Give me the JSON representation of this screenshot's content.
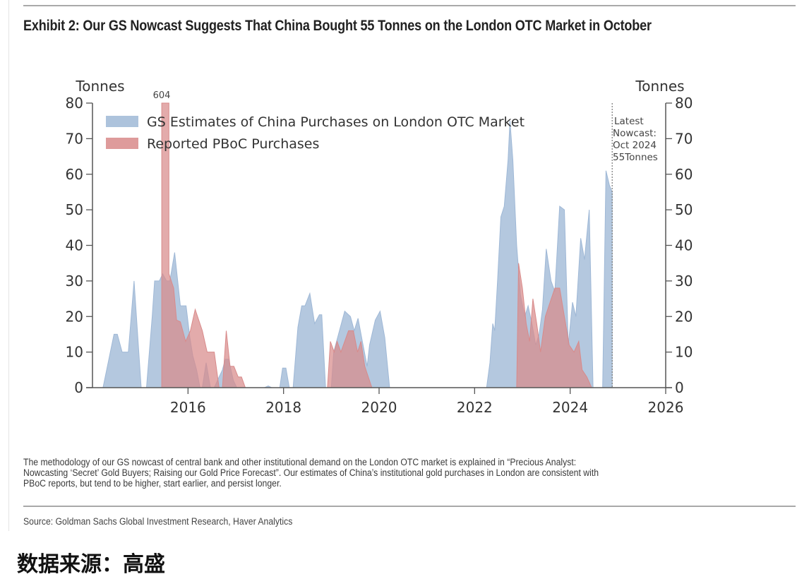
{
  "page": {
    "title": "Exhibit 2: Our GS Nowcast Suggests That China Bought 55 Tonnes on the London OTC Market in October",
    "note_lines": [
      "The methodology of our GS nowcast of central bank and other institutional demand on the London OTC market is explained in “Precious Analyst:",
      "Nowcasting ‘Secret’ Gold Buyers; Raising our Gold Price Forecast”. Our estimates of China’s institutional gold purchases in London are consistent with",
      "PBoC reports, but tend to be higher, start earlier, and persist longer."
    ],
    "source": "Source: Goldman Sachs Global Investment Research, Haver Analytics",
    "footer_cn": "数据来源：高盛"
  },
  "chart_data": {
    "type": "area",
    "title": "Exhibit 2: Our GS Nowcast Suggests That China Bought 55 Tonnes on the London OTC Market in October",
    "xlabel": "",
    "ylabel_left": "Tonnes",
    "ylabel_right": "Tonnes",
    "xlim": [
      2014.0,
      2026.0
    ],
    "ylim": [
      0,
      80
    ],
    "xticks": [
      "2016",
      "2018",
      "2020",
      "2022",
      "2024",
      "2026"
    ],
    "xtick_values": [
      2016,
      2018,
      2020,
      2022,
      2024,
      2026
    ],
    "yticks": [
      "0",
      "10",
      "20",
      "30",
      "40",
      "50",
      "60",
      "70",
      "80"
    ],
    "ytick_values": [
      0,
      10,
      20,
      30,
      40,
      50,
      60,
      70,
      80
    ],
    "grid": false,
    "legend_position": "top-left",
    "colors": {
      "gs": "#9fb8d6",
      "pboc": "#d88a8a",
      "axis": "#555555"
    },
    "series": [
      {
        "name": "GS Estimates of China Purchases on London OTC Market",
        "key": "gs",
        "points": [
          [
            2014.22,
            0
          ],
          [
            2014.45,
            15
          ],
          [
            2014.52,
            15
          ],
          [
            2014.62,
            10
          ],
          [
            2014.75,
            10
          ],
          [
            2014.87,
            30
          ],
          [
            2015.02,
            0
          ],
          [
            2015.13,
            0
          ],
          [
            2015.25,
            20
          ],
          [
            2015.3,
            30
          ],
          [
            2015.4,
            30
          ],
          [
            2015.47,
            32
          ],
          [
            2015.55,
            30
          ],
          [
            2015.62,
            30
          ],
          [
            2015.72,
            38
          ],
          [
            2015.84,
            23
          ],
          [
            2015.96,
            23
          ],
          [
            2016.04,
            14
          ],
          [
            2016.1,
            9
          ],
          [
            2016.18,
            5
          ],
          [
            2016.25,
            0
          ],
          [
            2016.3,
            0
          ],
          [
            2016.38,
            7
          ],
          [
            2016.47,
            0
          ],
          [
            2016.55,
            0
          ],
          [
            2016.65,
            3
          ],
          [
            2016.72,
            5
          ],
          [
            2016.78,
            8
          ],
          [
            2016.85,
            8
          ],
          [
            2016.95,
            2
          ],
          [
            2017.02,
            0
          ],
          [
            2017.6,
            0
          ],
          [
            2017.68,
            0.5
          ],
          [
            2017.75,
            0
          ],
          [
            2017.92,
            0
          ],
          [
            2017.98,
            5.5
          ],
          [
            2018.05,
            5.5
          ],
          [
            2018.12,
            0
          ],
          [
            2018.2,
            0
          ],
          [
            2018.3,
            17
          ],
          [
            2018.38,
            23
          ],
          [
            2018.45,
            23
          ],
          [
            2018.55,
            26.5
          ],
          [
            2018.65,
            18
          ],
          [
            2018.75,
            20.5
          ],
          [
            2018.8,
            20.5
          ],
          [
            2018.88,
            0
          ],
          [
            2019.0,
            0
          ],
          [
            2019.05,
            10
          ],
          [
            2019.15,
            15
          ],
          [
            2019.28,
            21.5
          ],
          [
            2019.4,
            20
          ],
          [
            2019.48,
            16
          ],
          [
            2019.56,
            19.5
          ],
          [
            2019.65,
            13
          ],
          [
            2019.75,
            6
          ],
          [
            2019.8,
            12
          ],
          [
            2019.92,
            19
          ],
          [
            2020.02,
            21.5
          ],
          [
            2020.12,
            14
          ],
          [
            2020.22,
            0
          ],
          [
            2022.25,
            0
          ],
          [
            2022.32,
            7
          ],
          [
            2022.38,
            18
          ],
          [
            2022.42,
            16
          ],
          [
            2022.48,
            30
          ],
          [
            2022.55,
            48
          ],
          [
            2022.62,
            51
          ],
          [
            2022.7,
            64
          ],
          [
            2022.74,
            75
          ],
          [
            2022.8,
            64
          ],
          [
            2022.88,
            40
          ],
          [
            2022.96,
            26
          ],
          [
            2023.05,
            20
          ],
          [
            2023.12,
            23
          ],
          [
            2023.2,
            18
          ],
          [
            2023.28,
            12
          ],
          [
            2023.35,
            15
          ],
          [
            2023.42,
            22
          ],
          [
            2023.5,
            39
          ],
          [
            2023.6,
            30
          ],
          [
            2023.68,
            27
          ],
          [
            2023.78,
            51
          ],
          [
            2023.88,
            50
          ],
          [
            2023.96,
            12
          ],
          [
            2024.05,
            24
          ],
          [
            2024.12,
            20
          ],
          [
            2024.22,
            42
          ],
          [
            2024.3,
            36
          ],
          [
            2024.4,
            50
          ],
          [
            2024.48,
            0
          ],
          [
            2024.68,
            0
          ],
          [
            2024.75,
            61
          ],
          [
            2024.82,
            57
          ],
          [
            2024.88,
            55
          ],
          [
            2024.88,
            0
          ]
        ]
      },
      {
        "name": "Reported PBoC Purchases",
        "key": "pboc",
        "bar_label": "604",
        "points": [
          [
            2015.45,
            0
          ],
          [
            2015.45,
            80
          ],
          [
            2015.6,
            80
          ],
          [
            2015.6,
            32
          ],
          [
            2015.7,
            28
          ],
          [
            2015.76,
            19
          ],
          [
            2015.84,
            18.5
          ],
          [
            2015.95,
            13
          ],
          [
            2016.05,
            16
          ],
          [
            2016.15,
            22
          ],
          [
            2016.3,
            16
          ],
          [
            2016.4,
            10
          ],
          [
            2016.55,
            10
          ],
          [
            2016.65,
            0
          ],
          [
            2016.72,
            0
          ],
          [
            2016.8,
            16
          ],
          [
            2016.88,
            6
          ],
          [
            2016.96,
            6
          ],
          [
            2017.05,
            3
          ],
          [
            2017.12,
            3
          ],
          [
            2017.2,
            0
          ],
          [
            2018.92,
            0
          ],
          [
            2018.98,
            13
          ],
          [
            2019.06,
            10
          ],
          [
            2019.12,
            13
          ],
          [
            2019.2,
            10
          ],
          [
            2019.28,
            13
          ],
          [
            2019.36,
            16
          ],
          [
            2019.46,
            16
          ],
          [
            2019.55,
            10
          ],
          [
            2019.62,
            13
          ],
          [
            2019.7,
            6
          ],
          [
            2019.85,
            0
          ],
          [
            2022.88,
            0
          ],
          [
            2022.92,
            35
          ],
          [
            2023.0,
            28
          ],
          [
            2023.08,
            18
          ],
          [
            2023.15,
            13
          ],
          [
            2023.22,
            25
          ],
          [
            2023.3,
            18
          ],
          [
            2023.38,
            10
          ],
          [
            2023.48,
            20
          ],
          [
            2023.58,
            24
          ],
          [
            2023.68,
            28
          ],
          [
            2023.78,
            28
          ],
          [
            2023.88,
            20
          ],
          [
            2023.98,
            12
          ],
          [
            2024.08,
            10
          ],
          [
            2024.18,
            13
          ],
          [
            2024.25,
            5
          ],
          [
            2024.35,
            3
          ],
          [
            2024.45,
            0
          ]
        ]
      }
    ],
    "annotations": {
      "nowcast_line_x": 2024.88,
      "nowcast_lines": [
        "Latest",
        "Nowcast:",
        "Oct 2024",
        "55Tonnes"
      ]
    }
  }
}
